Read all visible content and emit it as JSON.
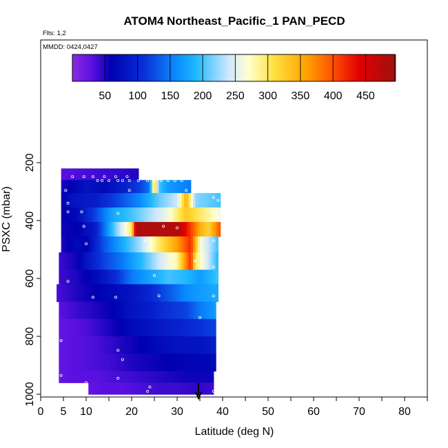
{
  "chart_data": {
    "type": "heatmap",
    "title": "ATOM4 Northeast_Pacific_1 PAN_PECD",
    "flights_label": "Flts: 1,2",
    "dates_label": "MMDD: 0424,0427",
    "xlabel": "Latitude (deg N)",
    "ylabel": "PSXC (mbar)",
    "xlim": [
      0,
      85
    ],
    "ylim": [
      1000,
      0
    ],
    "x_ticks": [
      0,
      5,
      10,
      20,
      30,
      40,
      50,
      60,
      70,
      80
    ],
    "y_ticks": [
      200,
      400,
      600,
      800,
      1000
    ],
    "colorbar": {
      "range": [
        0,
        495
      ],
      "ticks": [
        50,
        100,
        150,
        200,
        250,
        300,
        350,
        400,
        450
      ],
      "colors": [
        "#8a2be2",
        "#5a10e0",
        "#0000b0",
        "#0a30d8",
        "#0a8cff",
        "#20b8ff",
        "#cfe8ff",
        "#ffffd0",
        "#ffe040",
        "#ffa000",
        "#ff5000",
        "#e00000",
        "#a01010"
      ],
      "color_stops": [
        0,
        30,
        60,
        110,
        160,
        190,
        240,
        270,
        310,
        360,
        400,
        440,
        495
      ]
    },
    "arrow_latitude": 34.7,
    "series": [
      {
        "p": [
          220,
          260
        ],
        "lat": [
          4.5,
          21.5
        ],
        "v": [
          [
            4.5,
            30
          ],
          [
            14,
            40
          ],
          [
            21.5,
            50
          ]
        ]
      },
      {
        "p": [
          260,
          305
        ],
        "lat": [
          4.5,
          33
        ],
        "v": [
          [
            4.5,
            50
          ],
          [
            10,
            80
          ],
          [
            14,
            70
          ],
          [
            18,
            90
          ],
          [
            22,
            120
          ],
          [
            24,
            150
          ],
          [
            25,
            330
          ],
          [
            26,
            200
          ],
          [
            28,
            170
          ],
          [
            33,
            150
          ]
        ]
      },
      {
        "p": [
          305,
          355
        ],
        "lat": [
          4.5,
          39.5
        ],
        "v": [
          [
            4.5,
            60
          ],
          [
            7,
            80
          ],
          [
            12,
            90
          ],
          [
            18,
            130
          ],
          [
            22,
            160
          ],
          [
            26,
            210
          ],
          [
            30,
            240
          ],
          [
            32,
            350
          ],
          [
            34,
            220
          ],
          [
            39.5,
            200
          ]
        ]
      },
      {
        "p": [
          355,
          405
        ],
        "lat": [
          4.5,
          39.5
        ],
        "v": [
          [
            4.5,
            60
          ],
          [
            8,
            70
          ],
          [
            12,
            120
          ],
          [
            16,
            180
          ],
          [
            20,
            200
          ],
          [
            24,
            230
          ],
          [
            28,
            260
          ],
          [
            32,
            330
          ],
          [
            35,
            300
          ],
          [
            39.5,
            260
          ]
        ]
      },
      {
        "p": [
          405,
          455
        ],
        "lat": [
          4.5,
          39.5
        ],
        "v": [
          [
            4.5,
            55
          ],
          [
            8,
            60
          ],
          [
            12,
            90
          ],
          [
            16,
            200
          ],
          [
            20,
            300
          ],
          [
            21,
            480
          ],
          [
            30,
            480
          ],
          [
            33,
            410
          ],
          [
            35,
            350
          ],
          [
            37,
            320
          ],
          [
            39.5,
            400
          ]
        ]
      },
      {
        "p": [
          455,
          510
        ],
        "lat": [
          4.5,
          39
        ],
        "v": [
          [
            4.5,
            50
          ],
          [
            8,
            70
          ],
          [
            10,
            60
          ],
          [
            14,
            130
          ],
          [
            18,
            180
          ],
          [
            22,
            230
          ],
          [
            26,
            300
          ],
          [
            30,
            360
          ],
          [
            33,
            420
          ],
          [
            35,
            270
          ],
          [
            39,
            200
          ]
        ]
      },
      {
        "p": [
          510,
          570
        ],
        "lat": [
          4,
          39
        ],
        "v": [
          [
            4,
            40
          ],
          [
            8,
            55
          ],
          [
            10,
            80
          ],
          [
            14,
            120
          ],
          [
            18,
            150
          ],
          [
            22,
            190
          ],
          [
            26,
            240
          ],
          [
            30,
            280
          ],
          [
            33,
            420
          ],
          [
            34,
            300
          ],
          [
            39,
            190
          ]
        ]
      },
      {
        "p": [
          570,
          620
        ],
        "lat": [
          4,
          39
        ],
        "v": [
          [
            4,
            40
          ],
          [
            8,
            50
          ],
          [
            12,
            70
          ],
          [
            16,
            100
          ],
          [
            20,
            150
          ],
          [
            24,
            175
          ],
          [
            28,
            200
          ],
          [
            32,
            190
          ],
          [
            35,
            170
          ],
          [
            39,
            200
          ]
        ]
      },
      {
        "p": [
          620,
          680
        ],
        "lat": [
          3.5,
          39
        ],
        "v": [
          [
            3.5,
            35
          ],
          [
            8,
            50
          ],
          [
            12,
            60
          ],
          [
            16,
            70
          ],
          [
            20,
            80
          ],
          [
            24,
            100
          ],
          [
            28,
            130
          ],
          [
            32,
            160
          ],
          [
            35,
            170
          ],
          [
            39,
            180
          ]
        ]
      },
      {
        "p": [
          680,
          740
        ],
        "lat": [
          4,
          38.5
        ],
        "v": [
          [
            4,
            30
          ],
          [
            8,
            40
          ],
          [
            12,
            50
          ],
          [
            16,
            60
          ],
          [
            20,
            80
          ],
          [
            24,
            90
          ],
          [
            28,
            110
          ],
          [
            32,
            120
          ],
          [
            35,
            150
          ],
          [
            38.5,
            170
          ]
        ]
      },
      {
        "p": [
          740,
          800
        ],
        "lat": [
          4,
          38.5
        ],
        "v": [
          [
            4,
            25
          ],
          [
            8,
            30
          ],
          [
            12,
            40
          ],
          [
            16,
            55
          ],
          [
            20,
            70
          ],
          [
            24,
            80
          ],
          [
            28,
            90
          ],
          [
            32,
            100
          ],
          [
            35,
            110
          ],
          [
            38.5,
            120
          ]
        ]
      },
      {
        "p": [
          800,
          860
        ],
        "lat": [
          4,
          38.5
        ],
        "v": [
          [
            4,
            25
          ],
          [
            8,
            30
          ],
          [
            12,
            35
          ],
          [
            16,
            45
          ],
          [
            20,
            55
          ],
          [
            24,
            65
          ],
          [
            28,
            75
          ],
          [
            32,
            80
          ],
          [
            35,
            80
          ],
          [
            38.5,
            90
          ]
        ]
      },
      {
        "p": [
          860,
          920
        ],
        "lat": [
          4,
          38.5
        ],
        "v": [
          [
            4,
            25
          ],
          [
            8,
            30
          ],
          [
            12,
            35
          ],
          [
            16,
            40
          ],
          [
            20,
            50
          ],
          [
            24,
            55
          ],
          [
            28,
            60
          ],
          [
            32,
            65
          ],
          [
            35,
            65
          ],
          [
            38.5,
            70
          ]
        ]
      },
      {
        "p": [
          920,
          960
        ],
        "lat": [
          4,
          38
        ],
        "v": [
          [
            4,
            25
          ],
          [
            8,
            30
          ],
          [
            12,
            30
          ],
          [
            16,
            35
          ],
          [
            20,
            40
          ],
          [
            24,
            45
          ],
          [
            28,
            50
          ],
          [
            32,
            55
          ],
          [
            35,
            55
          ],
          [
            38,
            55
          ]
        ]
      },
      {
        "p": [
          960,
          1000
        ],
        "lat": [
          10.5,
          38
        ],
        "v": [
          [
            10.5,
            25
          ],
          [
            14,
            30
          ],
          [
            18,
            30
          ],
          [
            22,
            35
          ],
          [
            26,
            40
          ],
          [
            30,
            40
          ],
          [
            34,
            45
          ],
          [
            38,
            40
          ]
        ]
      }
    ],
    "sample_points": [
      [
        7,
        248
      ],
      [
        9.5,
        248
      ],
      [
        11.5,
        248
      ],
      [
        14,
        248
      ],
      [
        16.5,
        248
      ],
      [
        19,
        248
      ],
      [
        12.5,
        262
      ],
      [
        13.5,
        262
      ],
      [
        15,
        262
      ],
      [
        17,
        262
      ],
      [
        18,
        262
      ],
      [
        19.5,
        262
      ],
      [
        21.5,
        262
      ],
      [
        23.5,
        262
      ],
      [
        25,
        262
      ],
      [
        26.5,
        262
      ],
      [
        28,
        262
      ],
      [
        29.5,
        262
      ],
      [
        31,
        262
      ],
      [
        5.5,
        296
      ],
      [
        19.5,
        296
      ],
      [
        32,
        296
      ],
      [
        6,
        340
      ],
      [
        39,
        330
      ],
      [
        38,
        320
      ],
      [
        6,
        370
      ],
      [
        9,
        370
      ],
      [
        17,
        375
      ],
      [
        39,
        390
      ],
      [
        9.5,
        420
      ],
      [
        27,
        420
      ],
      [
        30,
        425
      ],
      [
        10,
        480
      ],
      [
        23,
        470
      ],
      [
        38,
        470
      ],
      [
        34,
        540
      ],
      [
        38,
        560
      ],
      [
        25,
        590
      ],
      [
        6,
        610
      ],
      [
        26,
        660
      ],
      [
        38,
        660
      ],
      [
        11.5,
        665
      ],
      [
        16.5,
        665
      ],
      [
        35,
        735
      ],
      [
        4.5,
        815
      ],
      [
        17,
        848
      ],
      [
        18,
        880
      ],
      [
        4.5,
        935
      ],
      [
        17,
        945
      ],
      [
        10,
        960
      ],
      [
        24,
        975
      ],
      [
        23.5,
        990
      ],
      [
        38,
        990
      ]
    ]
  }
}
